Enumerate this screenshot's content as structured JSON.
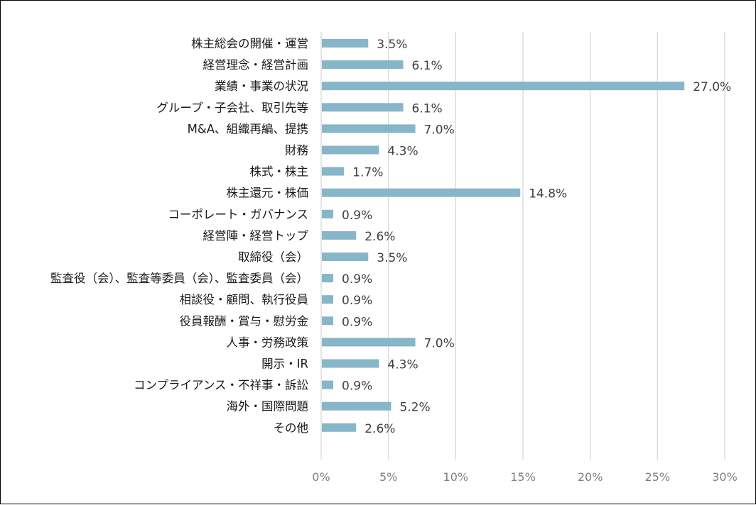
{
  "chart_data": {
    "type": "bar",
    "orientation": "horizontal",
    "title": "",
    "xlabel": "",
    "ylabel": "",
    "xlim": [
      0,
      30
    ],
    "grid": "vertical",
    "legend": "none",
    "bar_color": "#86B6C8",
    "grid_color": "#d9d9d9",
    "x_ticks": [
      0,
      5,
      10,
      15,
      20,
      25,
      30
    ],
    "x_tick_labels": [
      "0%",
      "5%",
      "10%",
      "15%",
      "20%",
      "25%",
      "30%"
    ],
    "categories": [
      "株主総会の開催・運営",
      "経営理念・経営計画",
      "業績・事業の状況",
      "グループ・子会社、取引先等",
      "M&A、組織再編、提携",
      "財務",
      "株式・株主",
      "株主還元・株価",
      "コーポレート・ガバナンス",
      "経営陣・経営トップ",
      "取締役（会）",
      "監査役（会）、監査等委員（会）、監査委員（会）",
      "相談役・顧問、執行役員",
      "役員報酬・賞与・慰労金",
      "人事・労務政策",
      "開示・IR",
      "コンプライアンス・不祥事・訴訟",
      "海外・国際問題",
      "その他"
    ],
    "values": [
      3.5,
      6.1,
      27.0,
      6.1,
      7.0,
      4.3,
      1.7,
      14.8,
      0.9,
      2.6,
      3.5,
      0.9,
      0.9,
      0.9,
      7.0,
      4.3,
      0.9,
      5.2,
      2.6
    ],
    "value_labels": [
      "3.5%",
      "6.1%",
      "27.0%",
      "6.1%",
      "7.0%",
      "4.3%",
      "1.7%",
      "14.8%",
      "0.9%",
      "2.6%",
      "3.5%",
      "0.9%",
      "0.9%",
      "0.9%",
      "7.0%",
      "4.3%",
      "0.9%",
      "5.2%",
      "2.6%"
    ]
  }
}
